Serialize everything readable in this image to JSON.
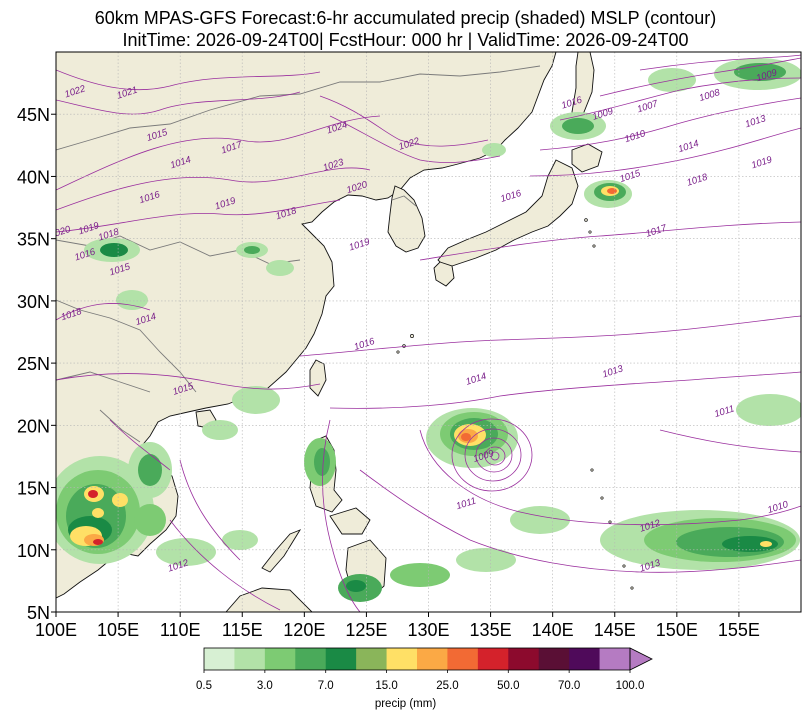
{
  "title_line1": "60km MPAS-GFS Forecast:6-hr accumulated precip (shaded) MSLP (contour)",
  "title_line2": "InitTime: 2026-09-24T00| FcstHour: 000 hr | ValidTime: 2026-09-24T00",
  "map": {
    "lon_range": [
      100,
      160
    ],
    "lat_range": [
      5,
      50
    ],
    "x_ticks": [
      "100E",
      "105E",
      "110E",
      "115E",
      "120E",
      "125E",
      "130E",
      "135E",
      "140E",
      "145E",
      "150E",
      "155E"
    ],
    "y_ticks": [
      "5N",
      "10N",
      "15N",
      "20N",
      "25N",
      "30N",
      "35N",
      "40N",
      "45N"
    ],
    "colors": {
      "land": "#efecd9",
      "ocean": "#ffffff",
      "isobar": "#9a2f9e",
      "isobar_label": "#7a1f8a",
      "coast": "#111111",
      "border": "#7a7a7a",
      "grid": "#b5b5b5"
    },
    "isobar_labels": [
      {
        "text": "1022",
        "lon": 101.6,
        "lat": 46.6
      },
      {
        "text": "1021",
        "lon": 105.8,
        "lat": 46.5
      },
      {
        "text": "1015",
        "lon": 108.2,
        "lat": 43.1
      },
      {
        "text": "1014",
        "lon": 110.1,
        "lat": 40.9
      },
      {
        "text": "1017",
        "lon": 114.2,
        "lat": 42.1
      },
      {
        "text": "1024",
        "lon": 122.7,
        "lat": 43.7
      },
      {
        "text": "1023",
        "lon": 122.4,
        "lat": 40.7
      },
      {
        "text": "1020",
        "lon": 124.3,
        "lat": 38.9
      },
      {
        "text": "1022",
        "lon": 128.5,
        "lat": 42.4
      },
      {
        "text": "1016",
        "lon": 107.6,
        "lat": 38.1
      },
      {
        "text": "1019",
        "lon": 113.7,
        "lat": 37.6
      },
      {
        "text": "1018",
        "lon": 118.6,
        "lat": 36.8
      },
      {
        "text": "1019",
        "lon": 124.5,
        "lat": 34.3
      },
      {
        "text": "1020",
        "lon": 100.4,
        "lat": 35.3
      },
      {
        "text": "1019",
        "lon": 102.7,
        "lat": 35.6
      },
      {
        "text": "1018",
        "lon": 104.3,
        "lat": 35.1
      },
      {
        "text": "1016",
        "lon": 102.4,
        "lat": 33.5
      },
      {
        "text": "1015",
        "lon": 105.2,
        "lat": 32.3
      },
      {
        "text": "1018",
        "lon": 101.3,
        "lat": 28.7
      },
      {
        "text": "1014",
        "lon": 107.3,
        "lat": 28.3
      },
      {
        "text": "1015",
        "lon": 110.3,
        "lat": 22.7
      },
      {
        "text": "1016",
        "lon": 124.9,
        "lat": 26.3
      },
      {
        "text": "1016",
        "lon": 136.7,
        "lat": 38.2
      },
      {
        "text": "1014",
        "lon": 133.9,
        "lat": 23.5
      },
      {
        "text": "1013",
        "lon": 144.9,
        "lat": 24.1
      },
      {
        "text": "1011",
        "lon": 153.9,
        "lat": 20.9
      },
      {
        "text": "1011",
        "lon": 133.1,
        "lat": 13.5
      },
      {
        "text": "1009",
        "lon": 134.5,
        "lat": 17.3
      },
      {
        "text": "1012",
        "lon": 109.9,
        "lat": 8.5
      },
      {
        "text": "1012",
        "lon": 147.9,
        "lat": 11.7
      },
      {
        "text": "1013",
        "lon": 147.9,
        "lat": 8.5
      },
      {
        "text": "1010",
        "lon": 158.2,
        "lat": 13.2
      },
      {
        "text": "1017",
        "lon": 148.4,
        "lat": 35.4
      },
      {
        "text": "1019",
        "lon": 156.9,
        "lat": 40.9
      },
      {
        "text": "1018",
        "lon": 151.7,
        "lat": 39.5
      },
      {
        "text": "1015",
        "lon": 146.3,
        "lat": 39.8
      },
      {
        "text": "1014",
        "lon": 151.0,
        "lat": 42.2
      },
      {
        "text": "1010",
        "lon": 146.7,
        "lat": 43.0
      },
      {
        "text": "1013",
        "lon": 156.4,
        "lat": 44.2
      },
      {
        "text": "1009",
        "lon": 144.1,
        "lat": 44.8
      },
      {
        "text": "1007",
        "lon": 147.7,
        "lat": 45.4
      },
      {
        "text": "1008",
        "lon": 152.7,
        "lat": 46.3
      },
      {
        "text": "1009",
        "lon": 157.3,
        "lat": 47.9
      },
      {
        "text": "1016",
        "lon": 141.6,
        "lat": 45.7
      }
    ]
  },
  "colorbar": {
    "unit_label": "precip (mm)",
    "tick_labels": [
      "0.5",
      "3.0",
      "7.0",
      "15.0",
      "25.0",
      "50.0",
      "70.0",
      "100.0"
    ],
    "colors": [
      "#d7f0d3",
      "#b2e2a8",
      "#7dcb73",
      "#4aaa5a",
      "#1a8a45",
      "#8ab55a",
      "#ffe066",
      "#fba945",
      "#f26a34",
      "#d4222b",
      "#8c0a2d",
      "#5a0f35",
      "#4f0a5a",
      "#b57bc2"
    ]
  }
}
